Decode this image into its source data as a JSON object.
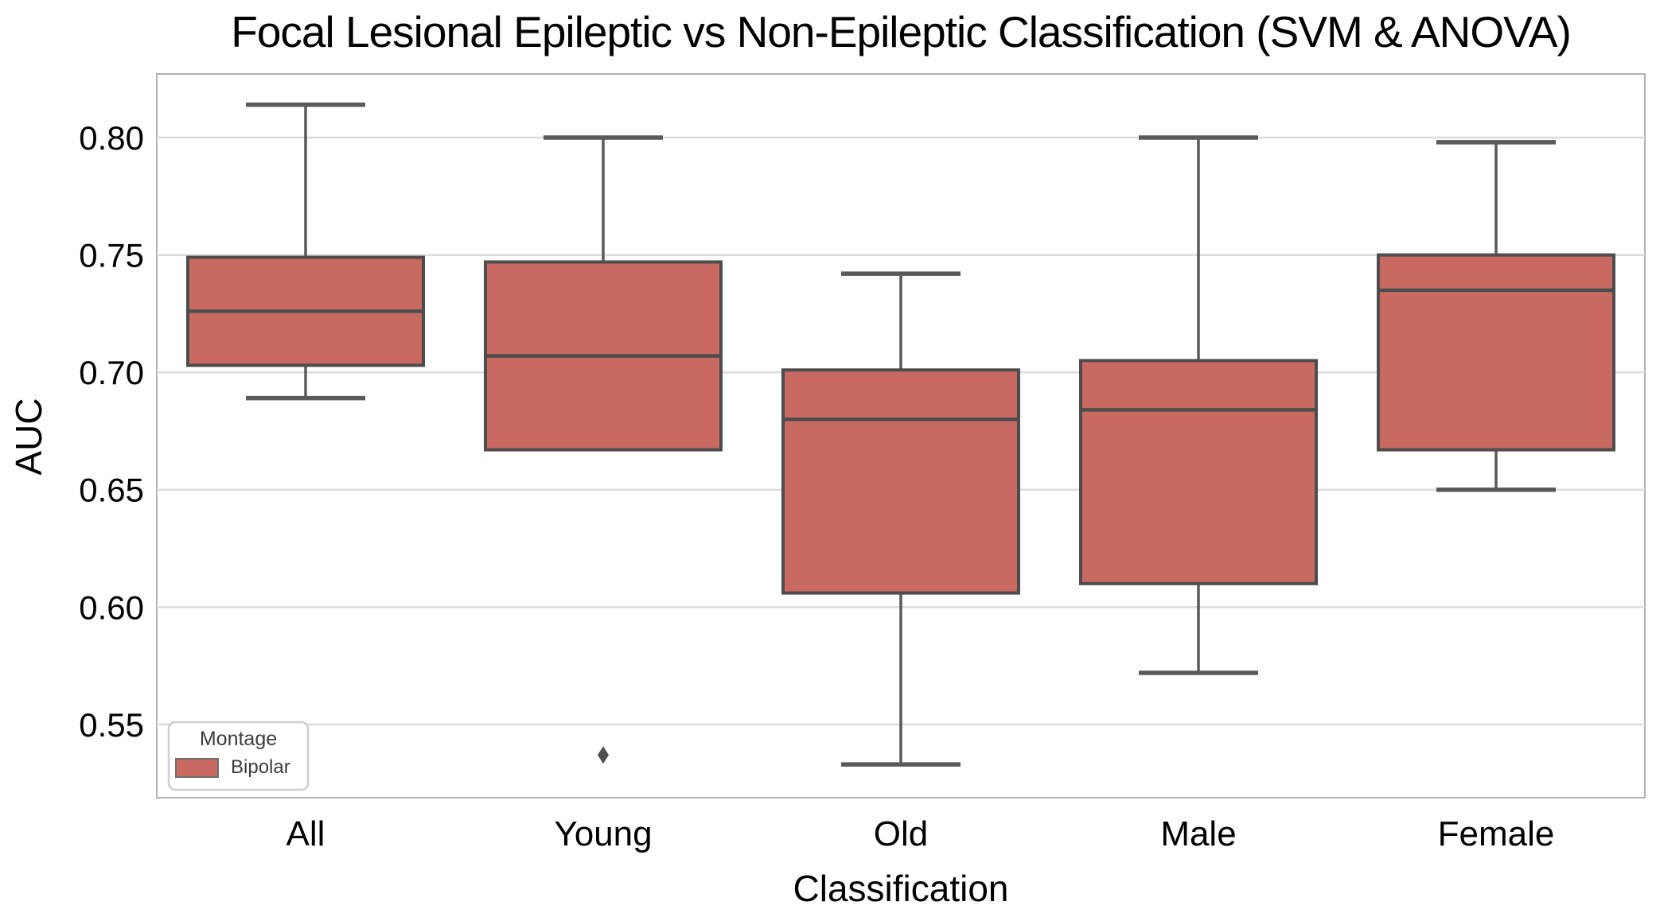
{
  "chart_data": {
    "type": "box",
    "title": "Focal Lesional Epileptic vs Non-Epileptic Classification (SVM & ANOVA)",
    "xlabel": "Classification",
    "ylabel": "AUC",
    "categories": [
      "All",
      "Young",
      "Old",
      "Male",
      "Female"
    ],
    "yticks": [
      0.8,
      0.75,
      0.7,
      0.65,
      0.6,
      0.55
    ],
    "ylim": [
      0.5188,
      0.8271
    ],
    "grid": "horizontal",
    "legend": {
      "title": "Montage",
      "position": "lower-left",
      "entries": [
        {
          "label": "Bipolar",
          "color": "#c96a62"
        }
      ]
    },
    "series": [
      {
        "category": "All",
        "whisker_low": 0.689,
        "q1": 0.703,
        "median": 0.726,
        "q3": 0.749,
        "whisker_high": 0.814,
        "outliers": []
      },
      {
        "category": "Young",
        "whisker_low": 0.667,
        "q1": 0.667,
        "median": 0.707,
        "q3": 0.747,
        "whisker_high": 0.8,
        "outliers": [
          0.537
        ]
      },
      {
        "category": "Old",
        "whisker_low": 0.533,
        "q1": 0.606,
        "median": 0.68,
        "q3": 0.701,
        "whisker_high": 0.742,
        "outliers": []
      },
      {
        "category": "Male",
        "whisker_low": 0.572,
        "q1": 0.61,
        "median": 0.684,
        "q3": 0.705,
        "whisker_high": 0.8,
        "outliers": []
      },
      {
        "category": "Female",
        "whisker_low": 0.65,
        "q1": 0.667,
        "median": 0.735,
        "q3": 0.75,
        "whisker_high": 0.798,
        "outliers": []
      }
    ],
    "colors": {
      "box_fill": "#c96a62",
      "box_edge": "#4d4d4d",
      "whisker": "#5a5a5a",
      "median": "#4d4d4d",
      "outlier": "#4f4f4f",
      "gridline": "#dcdcdc",
      "axes_border": "#b3b3b3",
      "background": "#ffffff",
      "text": "#000000",
      "legend_border": "#cfcfcf",
      "legend_text": "#3d3d3d"
    }
  }
}
